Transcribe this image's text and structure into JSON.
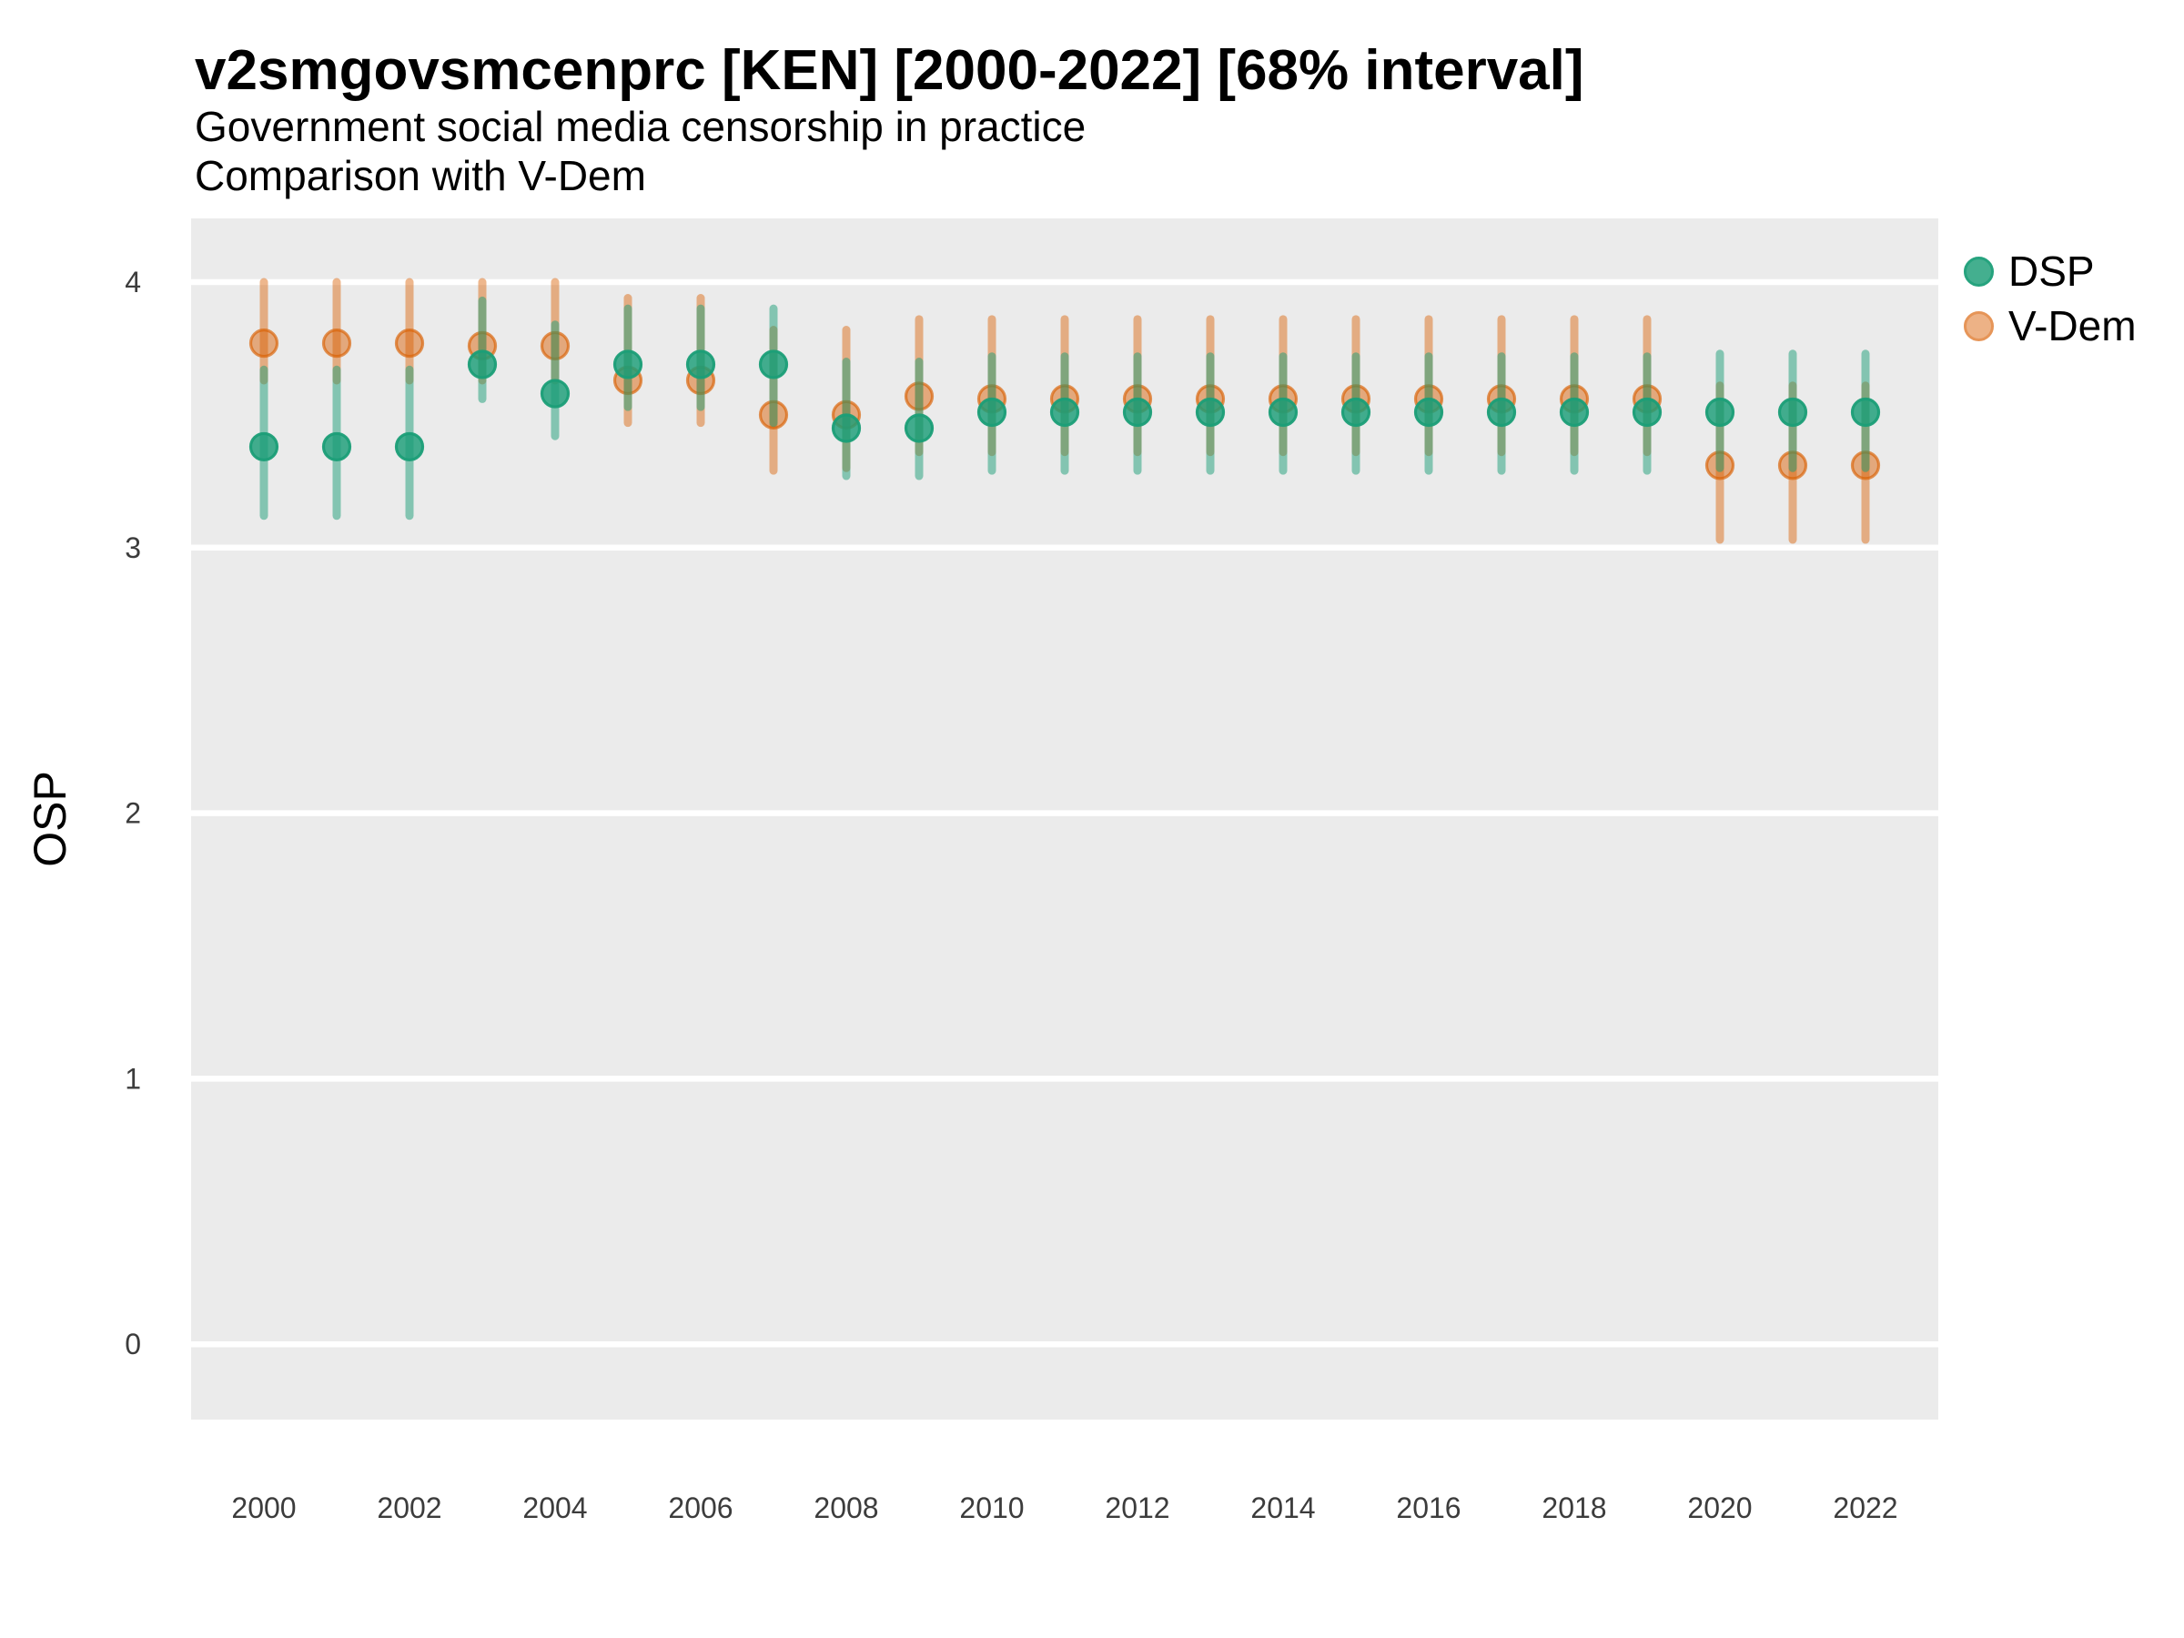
{
  "figure": {
    "title": "v2smgovsmcenprc [KEN] [2000-2022] [68% interval]",
    "subtitle1": "Government social media censorship in practice",
    "subtitle2": "Comparison with V-Dem"
  },
  "legend": {
    "position": "right",
    "items": [
      {
        "label": "DSP"
      },
      {
        "label": "V-Dem"
      }
    ]
  },
  "chart_data": {
    "type": "scatter",
    "variant": "pointrange",
    "title": "v2smgovsmcenprc [KEN] [2000-2022] [68% interval]",
    "subtitle": "Government social media censorship in practice / Comparison with V-Dem",
    "interval": "68%",
    "xlabel": "",
    "ylabel": "OSP",
    "xlim": [
      1999,
      2023
    ],
    "ylim": [
      -0.28,
      4.24
    ],
    "x_ticks": [
      2000,
      2002,
      2004,
      2006,
      2008,
      2010,
      2012,
      2014,
      2016,
      2018,
      2020,
      2022
    ],
    "y_ticks": [
      0,
      1,
      2,
      3,
      4
    ],
    "grid": "horizontal-major-only",
    "panel_background": "#EBEBEB",
    "gridline_color": "#FFFFFF",
    "axis_text_color": "#3C3C3C",
    "x": [
      2000,
      2001,
      2002,
      2003,
      2004,
      2005,
      2006,
      2007,
      2008,
      2009,
      2010,
      2011,
      2012,
      2013,
      2014,
      2015,
      2016,
      2017,
      2018,
      2019,
      2020,
      2021,
      2022
    ],
    "series": [
      {
        "name": "V-Dem",
        "color": "#D95F02",
        "line_alpha": 0.45,
        "fill_alpha": 0.48,
        "stroke_alpha": 0.66,
        "values": [
          3.77,
          3.77,
          3.77,
          3.76,
          3.76,
          3.63,
          3.63,
          3.5,
          3.5,
          3.57,
          3.56,
          3.56,
          3.56,
          3.56,
          3.56,
          3.56,
          3.56,
          3.56,
          3.56,
          3.56,
          3.31,
          3.31,
          3.31
        ],
        "lo": [
          3.63,
          3.63,
          3.63,
          3.63,
          3.63,
          3.47,
          3.47,
          3.29,
          3.3,
          3.36,
          3.36,
          3.36,
          3.36,
          3.36,
          3.36,
          3.36,
          3.36,
          3.36,
          3.36,
          3.36,
          3.03,
          3.03,
          3.03
        ],
        "hi": [
          4.0,
          4.0,
          4.0,
          4.0,
          4.0,
          3.94,
          3.94,
          3.82,
          3.82,
          3.86,
          3.86,
          3.86,
          3.86,
          3.86,
          3.86,
          3.86,
          3.86,
          3.86,
          3.86,
          3.86,
          3.61,
          3.61,
          3.61
        ]
      },
      {
        "name": "DSP",
        "color": "#1B9E77",
        "line_alpha": 0.5,
        "fill_alpha": 0.82,
        "stroke_alpha": 0.95,
        "values": [
          3.38,
          3.38,
          3.38,
          3.69,
          3.58,
          3.69,
          3.69,
          3.69,
          3.45,
          3.45,
          3.51,
          3.51,
          3.51,
          3.51,
          3.51,
          3.51,
          3.51,
          3.51,
          3.51,
          3.51,
          3.51,
          3.51,
          3.51
        ],
        "lo": [
          3.12,
          3.12,
          3.12,
          3.56,
          3.42,
          3.53,
          3.53,
          3.47,
          3.27,
          3.27,
          3.29,
          3.29,
          3.29,
          3.29,
          3.29,
          3.29,
          3.29,
          3.29,
          3.29,
          3.29,
          3.3,
          3.3,
          3.3
        ],
        "hi": [
          3.67,
          3.67,
          3.67,
          3.93,
          3.84,
          3.9,
          3.9,
          3.9,
          3.7,
          3.7,
          3.72,
          3.72,
          3.72,
          3.72,
          3.72,
          3.72,
          3.72,
          3.72,
          3.72,
          3.72,
          3.73,
          3.73,
          3.73
        ]
      }
    ]
  }
}
